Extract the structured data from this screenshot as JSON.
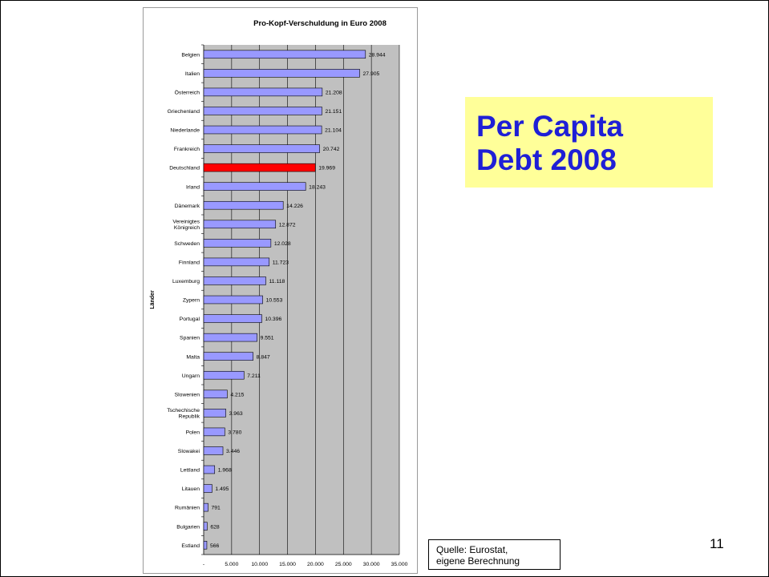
{
  "slide": {
    "title_line1": "Per Capita",
    "title_line2": "Debt 2008",
    "source_line1": "Quelle: Eurostat,",
    "source_line2": "eigene Berechnung",
    "page_number": "11",
    "title_color": "#1f1fd6",
    "title_box_color": "#ffff99"
  },
  "chart_data": {
    "type": "bar",
    "orientation": "horizontal",
    "title": "Pro-Kopf-Verschuldung in Euro 2008",
    "xlabel": "",
    "ylabel": "Länder",
    "xlim": [
      0,
      35000
    ],
    "x_ticks": [
      "-",
      "5.000",
      "10.000",
      "15.000",
      "20.000",
      "25.000",
      "30.000",
      "35.000"
    ],
    "grid": true,
    "plot_background": "#c0c0c0",
    "bar_color": "#9999ff",
    "highlight_color": "#ff0000",
    "categories": [
      [
        "Belgien"
      ],
      [
        "Italien"
      ],
      [
        "Österreich"
      ],
      [
        "Griechenland"
      ],
      [
        "Niederlande"
      ],
      [
        "Frankreich"
      ],
      [
        "Deutschland"
      ],
      [
        "Irland"
      ],
      [
        "Dänemark"
      ],
      [
        "Vereinigtes",
        "Königreich"
      ],
      [
        "Schweden"
      ],
      [
        "Finnland"
      ],
      [
        "Luxemburg"
      ],
      [
        "Zypern"
      ],
      [
        "Portugal"
      ],
      [
        "Spanien"
      ],
      [
        "Malta"
      ],
      [
        "Ungarn"
      ],
      [
        "Slowenien"
      ],
      [
        "Tschechische",
        "Republik"
      ],
      [
        "Polen"
      ],
      [
        "Slowakei"
      ],
      [
        "Lettland"
      ],
      [
        "Litauen"
      ],
      [
        "Rumänien"
      ],
      [
        "Bulgarien"
      ],
      [
        "Estland"
      ]
    ],
    "values": [
      28944,
      27905,
      21208,
      21151,
      21104,
      20742,
      19969,
      18243,
      14226,
      12872,
      12028,
      11723,
      11118,
      10553,
      10396,
      9551,
      8847,
      7211,
      4215,
      3963,
      3780,
      3446,
      1968,
      1495,
      791,
      628,
      566
    ],
    "value_labels": [
      "28.944",
      "27.905",
      "21.208",
      "21.151",
      "21.104",
      "20.742",
      "19.969",
      "18.243",
      "14.226",
      "12.872",
      "12.028",
      "11.723",
      "11.118",
      "10.553",
      "10.396",
      "9.551",
      "8.847",
      "7.211",
      "4.215",
      "3.963",
      "3.780",
      "3.446",
      "1.968",
      "1.495",
      "791",
      "628",
      "566"
    ],
    "highlight_index": 6
  }
}
